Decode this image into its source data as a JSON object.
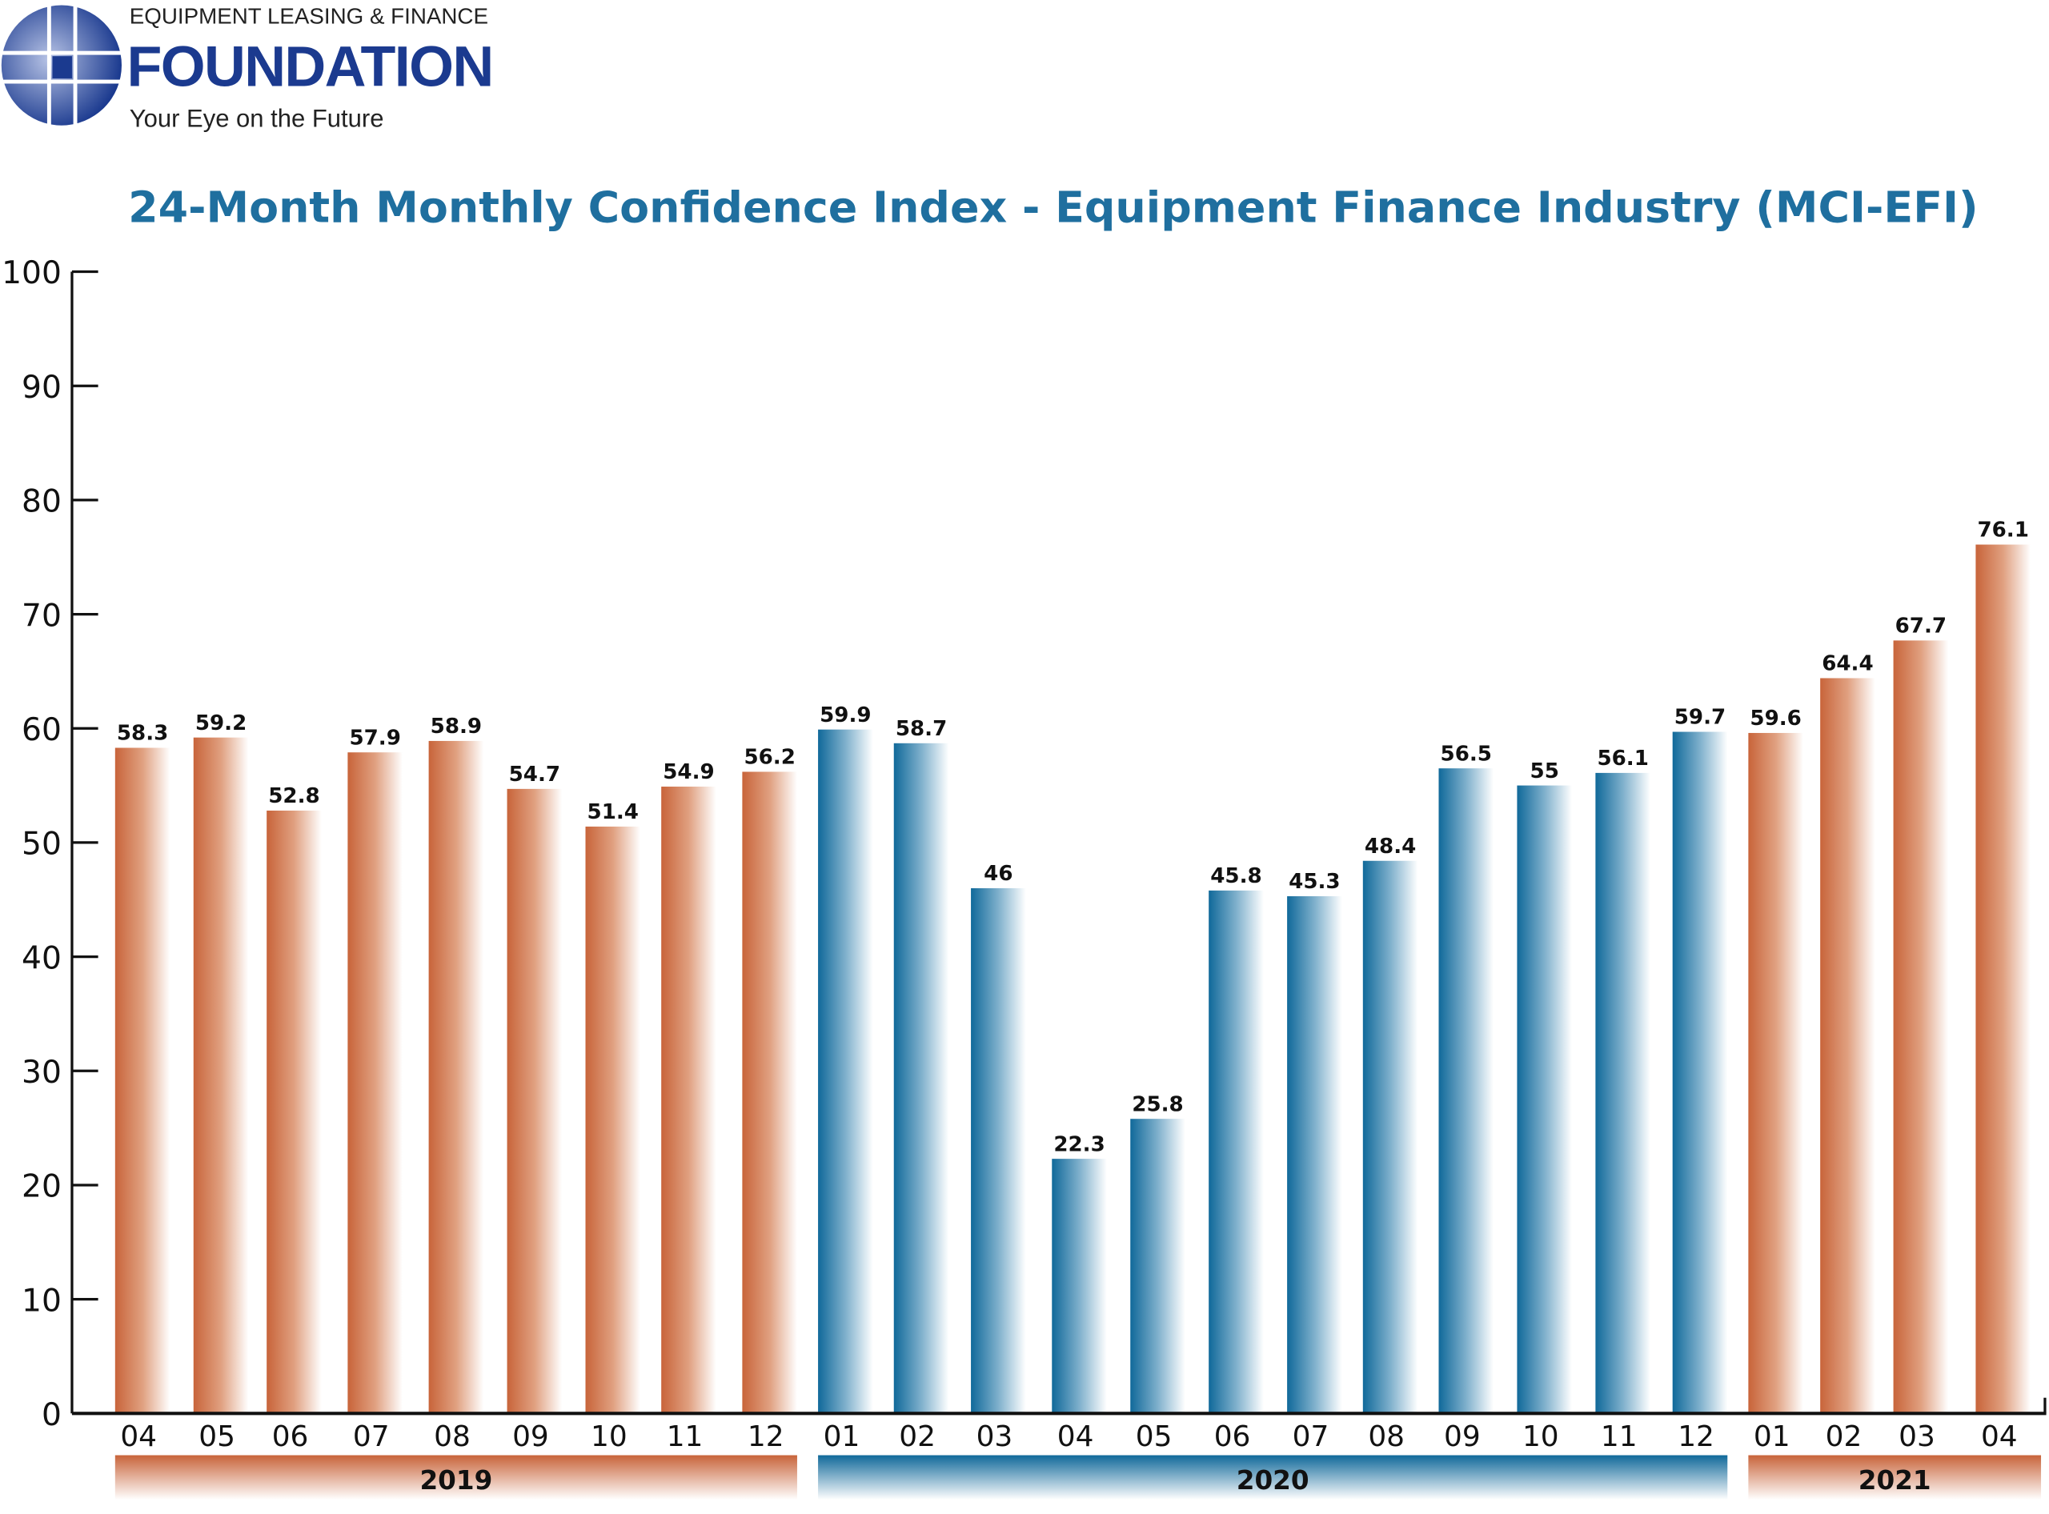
{
  "logo": {
    "line1": "EQUIPMENT LEASING & FINANCE",
    "line2": "FOUNDATION",
    "tagline": "Your Eye on the Future"
  },
  "colors": {
    "orange": "#c8643a",
    "blue": "#10699a",
    "title": "#1f6f9f",
    "logo": "#1b3a8f"
  },
  "chart_data": {
    "type": "bar",
    "title": "24-Month Monthly Confidence Index - Equipment Finance Industry (MCI-EFI)",
    "xlabel": "",
    "ylabel": "",
    "ylim": [
      0,
      100
    ],
    "yticks": [
      "0",
      "10",
      "20",
      "30",
      "40",
      "50",
      "60",
      "70",
      "80",
      "90",
      "100"
    ],
    "grid": false,
    "categories": [
      "04",
      "05",
      "06",
      "07",
      "08",
      "09",
      "10",
      "11",
      "12",
      "01",
      "02",
      "03",
      "04",
      "05",
      "06",
      "07",
      "08",
      "09",
      "10",
      "11",
      "12",
      "01",
      "02",
      "03",
      "04"
    ],
    "years": [
      {
        "label": "2019",
        "start": 0,
        "end": 8,
        "color": "orange"
      },
      {
        "label": "2020",
        "start": 9,
        "end": 20,
        "color": "blue"
      },
      {
        "label": "2021",
        "start": 21,
        "end": 24,
        "color": "orange"
      }
    ],
    "values": [
      58.3,
      59.2,
      52.8,
      57.9,
      58.9,
      54.7,
      51.4,
      54.9,
      56.2,
      59.9,
      58.7,
      46,
      22.3,
      25.8,
      45.8,
      45.3,
      48.4,
      56.5,
      55,
      56.1,
      59.7,
      59.6,
      64.4,
      67.7,
      76.1
    ],
    "labels": [
      "58.3",
      "59.2",
      "52.8",
      "57.9",
      "58.9",
      "54.7",
      "51.4",
      "54.9",
      "56.2",
      "59.9",
      "58.7",
      "46",
      "22.3",
      "25.8",
      "45.8",
      "45.3",
      "48.4",
      "56.5",
      "55",
      "56.1",
      "59.7",
      "59.6",
      "64.4",
      "67.7",
      "76.1"
    ]
  }
}
